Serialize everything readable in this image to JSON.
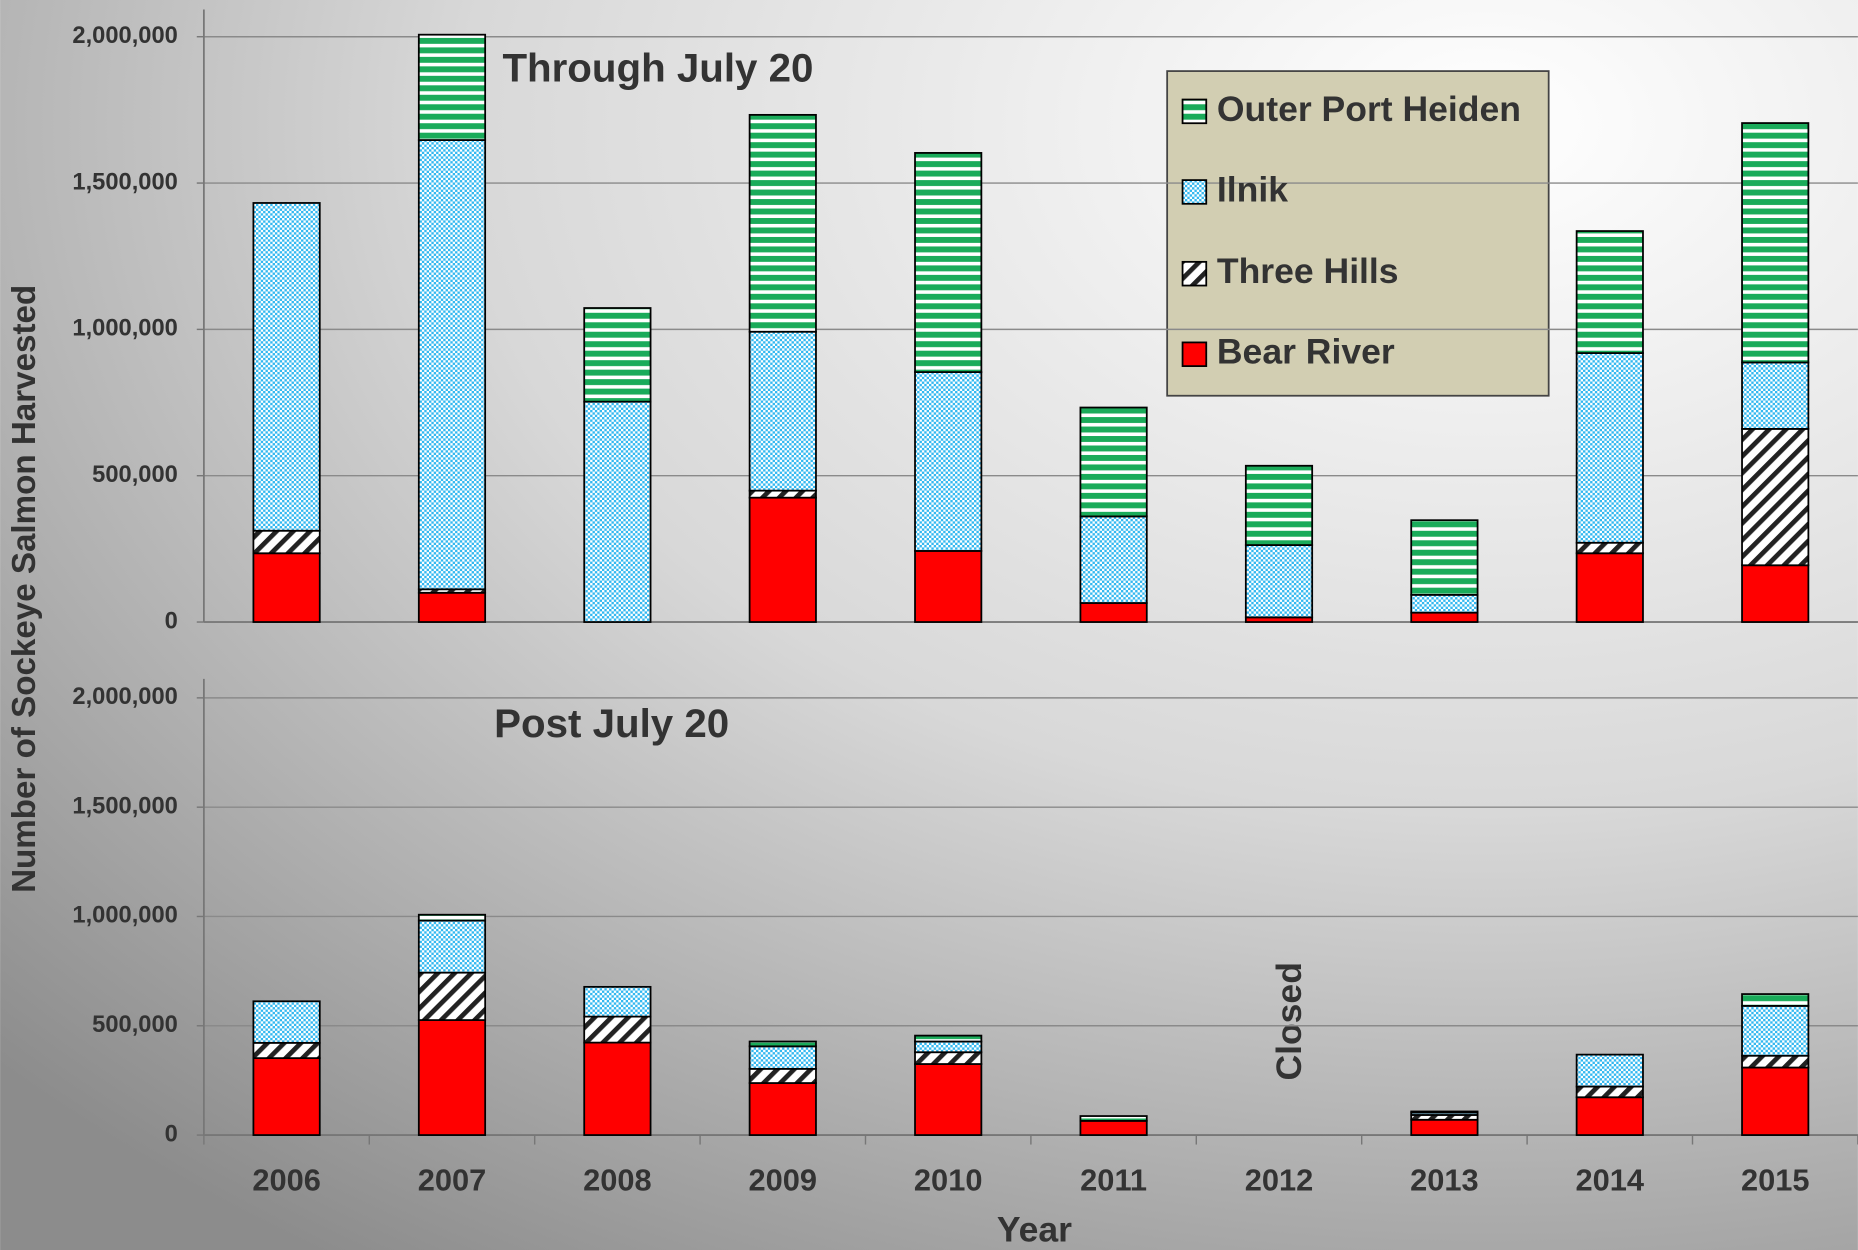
{
  "chart_data": [
    {
      "type": "bar",
      "stacked": true,
      "title": "Through July 20",
      "ylabel": "Number of Sockeye Salmon Harvested",
      "ylim": [
        0,
        2000000
      ],
      "yticks": [
        0,
        {
          "value": 500000,
          "label": "500,000"
        },
        {
          "value": 1000000,
          "label": "1,000,000"
        },
        {
          "value": 1500000,
          "label": "1,500,000"
        },
        {
          "value": 2000000,
          "label": "2,000,000"
        }
      ],
      "grid": true,
      "legend": "upper right",
      "series": [
        {
          "name": "Bear River",
          "color": "#ff0000",
          "pattern": "solid",
          "values": [
            235000,
            100000,
            0,
            425000,
            243000,
            65000,
            16000,
            32000,
            235000,
            194000
          ]
        },
        {
          "name": "Three Hills",
          "color": "#222222",
          "pattern": "diagonal",
          "values": [
            77000,
            12000,
            0,
            24000,
            0,
            0,
            0,
            0,
            36000,
            466000
          ]
        },
        {
          "name": "Ilnik",
          "color": "#33b8f0",
          "pattern": "checker",
          "values": [
            1120000,
            1535000,
            753000,
            543000,
            611000,
            296000,
            247000,
            61000,
            648000,
            227000
          ]
        },
        {
          "name": "Outer Port Heiden",
          "color": "#1aab5a",
          "pattern": "stripes",
          "values": [
            0,
            360000,
            320000,
            741000,
            749000,
            372000,
            271000,
            255000,
            417000,
            818000
          ]
        }
      ]
    },
    {
      "type": "bar",
      "stacked": true,
      "title": "Post July 20",
      "xlabel": "Year",
      "categories": [
        "2006",
        "2007",
        "2008",
        "2009",
        "2010",
        "2011",
        "2012",
        "2013",
        "2014",
        "2015"
      ],
      "ylim": [
        0,
        2000000
      ],
      "yticks": [
        0,
        {
          "value": 500000,
          "label": "500,000"
        },
        {
          "value": 1000000,
          "label": "1,000,000"
        },
        {
          "value": 1500000,
          "label": "1,500,000"
        },
        {
          "value": 2000000,
          "label": "2,000,000"
        }
      ],
      "grid": true,
      "annotations": [
        "Closed"
      ],
      "series": [
        {
          "color": "#ff0000",
          "pattern": "solid",
          "values": [
            352000,
            526000,
            423000,
            238000,
            325000,
            65000,
            null,
            70000,
            173000,
            309000
          ]
        },
        {
          "color": "#222222",
          "pattern": "diagonal",
          "values": [
            70000,
            217000,
            119000,
            65000,
            54000,
            0,
            null,
            22000,
            49000,
            54000
          ]
        },
        {
          "color": "#33b8f0",
          "pattern": "checker",
          "values": [
            190000,
            238000,
            136000,
            103000,
            49000,
            0,
            null,
            11000,
            146000,
            228000
          ]
        },
        {
          "color": "#1aab5a",
          "pattern": "stripes",
          "values": [
            0,
            27000,
            0,
            22000,
            27000,
            22000,
            null,
            5000,
            0,
            54000
          ]
        }
      ]
    }
  ]
}
